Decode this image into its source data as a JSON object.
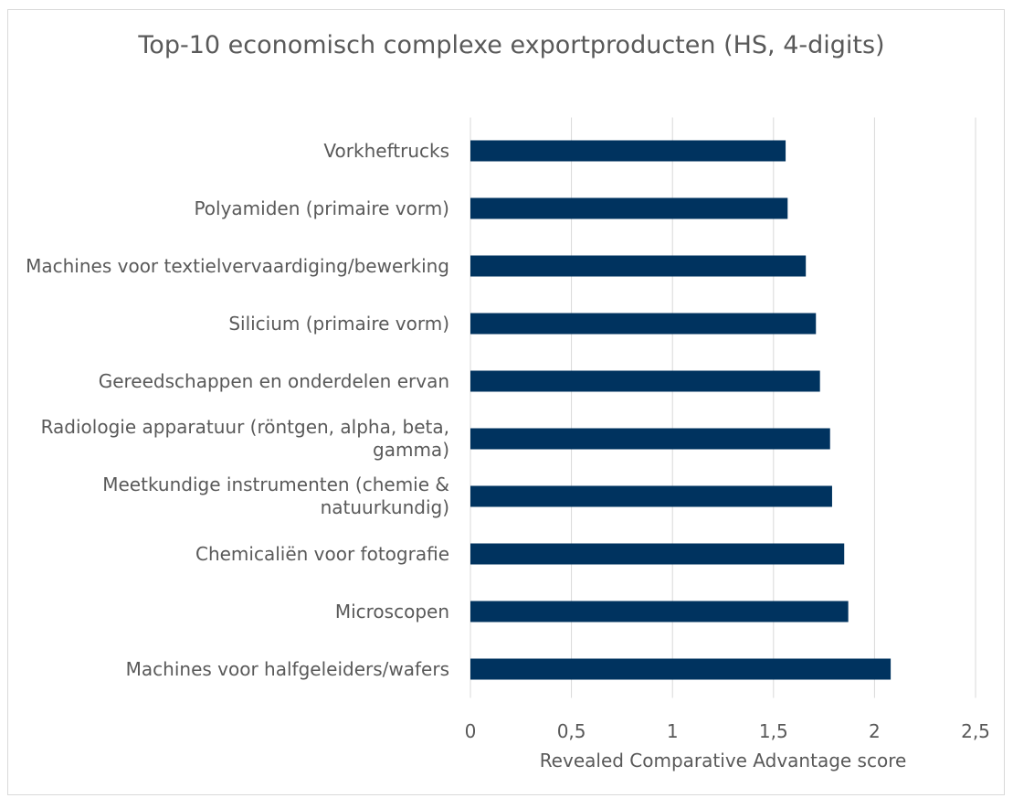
{
  "chart_data": {
    "type": "bar",
    "orientation": "horizontal",
    "title": "Top-10 economisch complexe exportproducten (HS, 4-digits)",
    "x_label": "Revealed Comparative Advantage score",
    "categories": [
      "Vorkheftrucks",
      "Polyamiden (primaire vorm)",
      "Machines voor textielvervaardiging/bewerking",
      "Silicium (primaire vorm)",
      "Gereedschappen en onderdelen ervan",
      "Radiologie apparatuur (röntgen, alpha, beta, gamma)",
      "Meetkundige instrumenten (chemie & natuurkundig)",
      "Chemicaliën voor fotografie",
      "Microscopen",
      "Machines voor halfgeleiders/wafers"
    ],
    "values": [
      1.56,
      1.57,
      1.66,
      1.71,
      1.73,
      1.78,
      1.79,
      1.85,
      1.87,
      2.08
    ],
    "color": "#00335f",
    "xlim": [
      0,
      2.5
    ],
    "xticks": [
      0,
      {
        "value": 0.5,
        "label": "0,5"
      },
      1,
      {
        "value": 1.5,
        "label": "1,5"
      },
      2,
      {
        "value": 2.5,
        "label": "2,5"
      }
    ],
    "grid": true
  }
}
